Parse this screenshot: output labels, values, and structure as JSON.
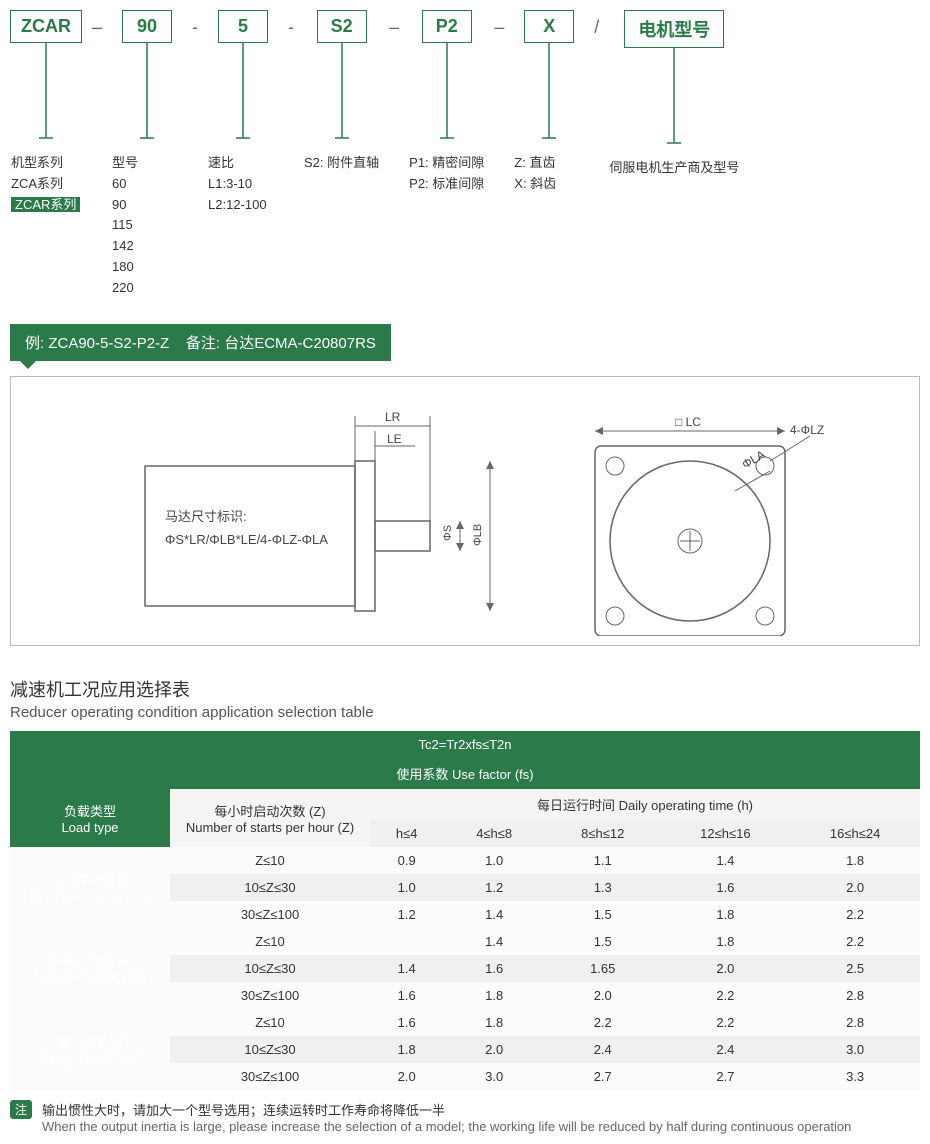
{
  "codes": {
    "c1": "ZCAR",
    "c2": "90",
    "c3": "5",
    "c4": "S2",
    "c5": "P2",
    "c6": "X",
    "c7": "电机型号"
  },
  "legends": {
    "l1_title": "机型系列\nZCA系列",
    "l1_hl": "ZCAR系列",
    "l2_title": "型号",
    "l2_items": "60\n90\n115\n142\n180\n220",
    "l3_title": "速比",
    "l3_items": "L1:3-10\nL2:12-100",
    "l4": "S2: 附件直轴",
    "l5": "P1: 精密间隙\nP2: 标准间隙",
    "l6": "Z: 直齿\nX: 斜齿",
    "l7": "伺服电机生产商及型号"
  },
  "banner": "例: ZCA90-5-S2-P2-Z    备注: 台达ECMA-C20807RS",
  "diagram": {
    "caption_cn": "马达尺寸标识:",
    "caption_formula": "ΦS*LR/ΦLB*LE/4-ΦLZ-ΦLA",
    "labels": {
      "LR": "LR",
      "LE": "LE",
      "phiS": "ΦS",
      "phiLB": "ΦLB",
      "LC": "□ LC",
      "phiLZ": "4-ΦLZ",
      "phiLA": "ΦLA"
    }
  },
  "section": {
    "cn": "减速机工况应用选择表",
    "en": "Reducer operating condition application selection table"
  },
  "table": {
    "formula": "Tc2=Tr2xfs≤T2n",
    "fs_label": "使用系数 Use factor (fs)",
    "loadtype_cn": "负载类型",
    "loadtype_en": "Load type",
    "z_cn": "每小时启动次数 (Z)",
    "z_en": "Number of starts per hour (Z)",
    "daily_cn": "每日运行时间 Daily operating time (h)",
    "h_cols": [
      "h≤4",
      "4≤h≤8",
      "8≤h≤12",
      "12≤h≤16",
      "16≤h≤24"
    ],
    "groups": [
      {
        "label_cn": "均匀平稳负载",
        "label_en": "Even and stable load",
        "rows": [
          {
            "z": "Z≤10",
            "v": [
              "0.9",
              "1.0",
              "1.1",
              "1.4",
              "1.8"
            ]
          },
          {
            "z": "10≤Z≤30",
            "v": [
              "1.0",
              "1.2",
              "1.3",
              "1.6",
              "2.0"
            ]
          },
          {
            "z": "30≤Z≤100",
            "v": [
              "1.2",
              "1.4",
              "1.5",
              "1.8",
              "2.2"
            ]
          }
        ]
      },
      {
        "label_cn": "中等冲击负载",
        "label_en": "Medium shock load",
        "rows": [
          {
            "z": "Z≤10",
            "v": [
              "",
              "1.4",
              "1.5",
              "1.8",
              "2.2"
            ]
          },
          {
            "z": "10≤Z≤30",
            "v": [
              "1.4",
              "1.6",
              "1.65",
              "2.0",
              "2.5"
            ]
          },
          {
            "z": "30≤Z≤100",
            "v": [
              "1.6",
              "1.8",
              "2.0",
              "2.2",
              "2.8"
            ]
          }
        ]
      },
      {
        "label_cn": "重冲击负载",
        "label_en": "Heavy shock load",
        "rows": [
          {
            "z": "Z≤10",
            "v": [
              "1.6",
              "1.8",
              "2.2",
              "2.2",
              "2.8"
            ]
          },
          {
            "z": "10≤Z≤30",
            "v": [
              "1.8",
              "2.0",
              "2.4",
              "2.4",
              "3.0"
            ]
          },
          {
            "z": "30≤Z≤100",
            "v": [
              "2.0",
              "3.0",
              "2.7",
              "2.7",
              "3.3"
            ]
          }
        ]
      }
    ]
  },
  "note": {
    "badge": "注",
    "cn": "输出惯性大时，请加大一个型号选用；连续运转时工作寿命将降低一半",
    "en": "When the output inertia is large, please increase the selection of a model; the working life will be reduced by half during continuous operation"
  },
  "colors": {
    "brand": "#2a7a4a"
  }
}
